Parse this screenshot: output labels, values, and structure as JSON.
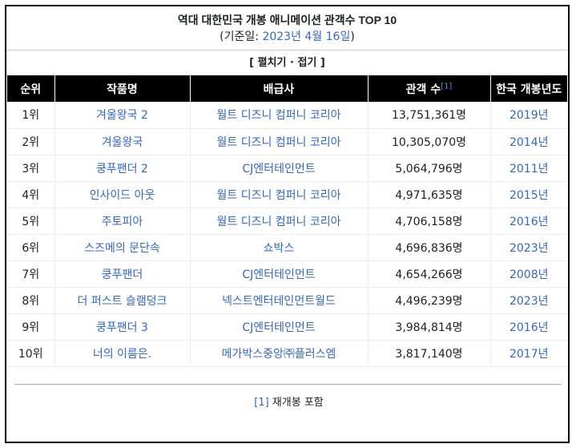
{
  "title": "역대 대한민국 개봉 애니메이션 관객수 TOP 10",
  "subtitle": {
    "prefix": "(기준일: ",
    "date": "2023년 4월 16일",
    "suffix": ")"
  },
  "toggle": "[ 펼치기 · 접기 ]",
  "table": {
    "headers": {
      "rank": "순위",
      "title": "작품명",
      "distributor": "배급사",
      "audience": "관객 수",
      "audience_ref": "[1]",
      "year": "한국 개봉년도"
    },
    "rows": [
      {
        "rank": "1위",
        "title": "겨울왕국 2",
        "distributor": "월트 디즈니 컴퍼니 코리아",
        "audience": "13,751,361명",
        "year": "2019년"
      },
      {
        "rank": "2위",
        "title": "겨울왕국",
        "distributor": "월트 디즈니 컴퍼니 코리아",
        "audience": "10,305,070명",
        "year": "2014년"
      },
      {
        "rank": "3위",
        "title": "쿵푸팬더 2",
        "distributor": "CJ엔터테인먼트",
        "audience": "5,064,796명",
        "year": "2011년"
      },
      {
        "rank": "4위",
        "title": "인사이드 아웃",
        "distributor": "월트 디즈니 컴퍼니 코리아",
        "audience": "4,971,635명",
        "year": "2015년"
      },
      {
        "rank": "5위",
        "title": "주토피아",
        "distributor": "월트 디즈니 컴퍼니 코리아",
        "audience": "4,706,158명",
        "year": "2016년"
      },
      {
        "rank": "6위",
        "title": "스즈메의 문단속",
        "distributor": "쇼박스",
        "audience": "4,696,836명",
        "year": "2023년"
      },
      {
        "rank": "7위",
        "title": "쿵푸팬더",
        "distributor": "CJ엔터테인먼트",
        "audience": "4,654,266명",
        "year": "2008년"
      },
      {
        "rank": "8위",
        "title": "더 퍼스트 슬램덩크",
        "distributor": "넥스트엔터테인먼트월드",
        "audience": "4,496,239명",
        "year": "2023년"
      },
      {
        "rank": "9위",
        "title": "쿵푸팬더 3",
        "distributor": "CJ엔터테인먼트",
        "audience": "3,984,814명",
        "year": "2016년"
      },
      {
        "rank": "10위",
        "title": "너의 이름은.",
        "distributor": "메가박스중앙㈜플러스엠",
        "audience": "3,817,140명",
        "year": "2017년"
      }
    ]
  },
  "footnote": {
    "ref": "[1]",
    "text": " 재개봉 포함"
  },
  "colors": {
    "link": "#3366cc",
    "header_bg": "#000000",
    "header_text": "#ffffff"
  }
}
